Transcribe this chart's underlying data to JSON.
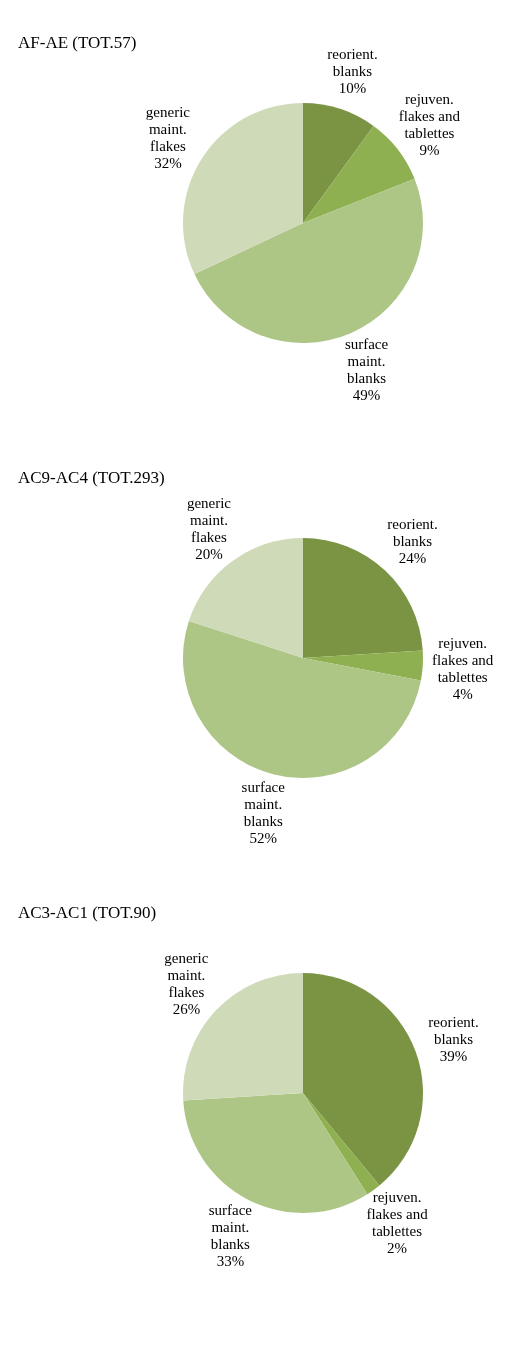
{
  "chart_data": [
    {
      "type": "pie",
      "title": "AF-AE (TOT.57)",
      "categories": [
        "reorient. blanks",
        "rejuven. flakes and tablettes",
        "surface maint. blanks",
        "generic maint. flakes"
      ],
      "values": [
        10,
        9,
        49,
        32
      ],
      "value_labels": [
        "10%",
        "9%",
        "49%",
        "32%"
      ],
      "colors": [
        "#7a9444",
        "#8fb051",
        "#adc686",
        "#cfdbb8"
      ]
    },
    {
      "type": "pie",
      "title": "AC9-AC4 (TOT.293)",
      "categories": [
        "reorient. blanks",
        "rejuven. flakes and tablettes",
        "surface maint. blanks",
        "generic maint. flakes"
      ],
      "values": [
        24,
        4,
        52,
        20
      ],
      "value_labels": [
        "24%",
        "4%",
        "52%",
        "20%"
      ],
      "colors": [
        "#7a9444",
        "#8fb051",
        "#adc686",
        "#cfdbb8"
      ]
    },
    {
      "type": "pie",
      "title": "AC3-AC1 (TOT.90)",
      "categories": [
        "reorient. blanks",
        "rejuven. flakes and tablettes",
        "surface maint. blanks",
        "generic maint. flakes"
      ],
      "values": [
        39,
        2,
        33,
        26
      ],
      "value_labels": [
        "39%",
        "2%",
        "33%",
        "26%"
      ],
      "colors": [
        "#7a9444",
        "#8fb051",
        "#adc686",
        "#cfdbb8"
      ]
    }
  ]
}
